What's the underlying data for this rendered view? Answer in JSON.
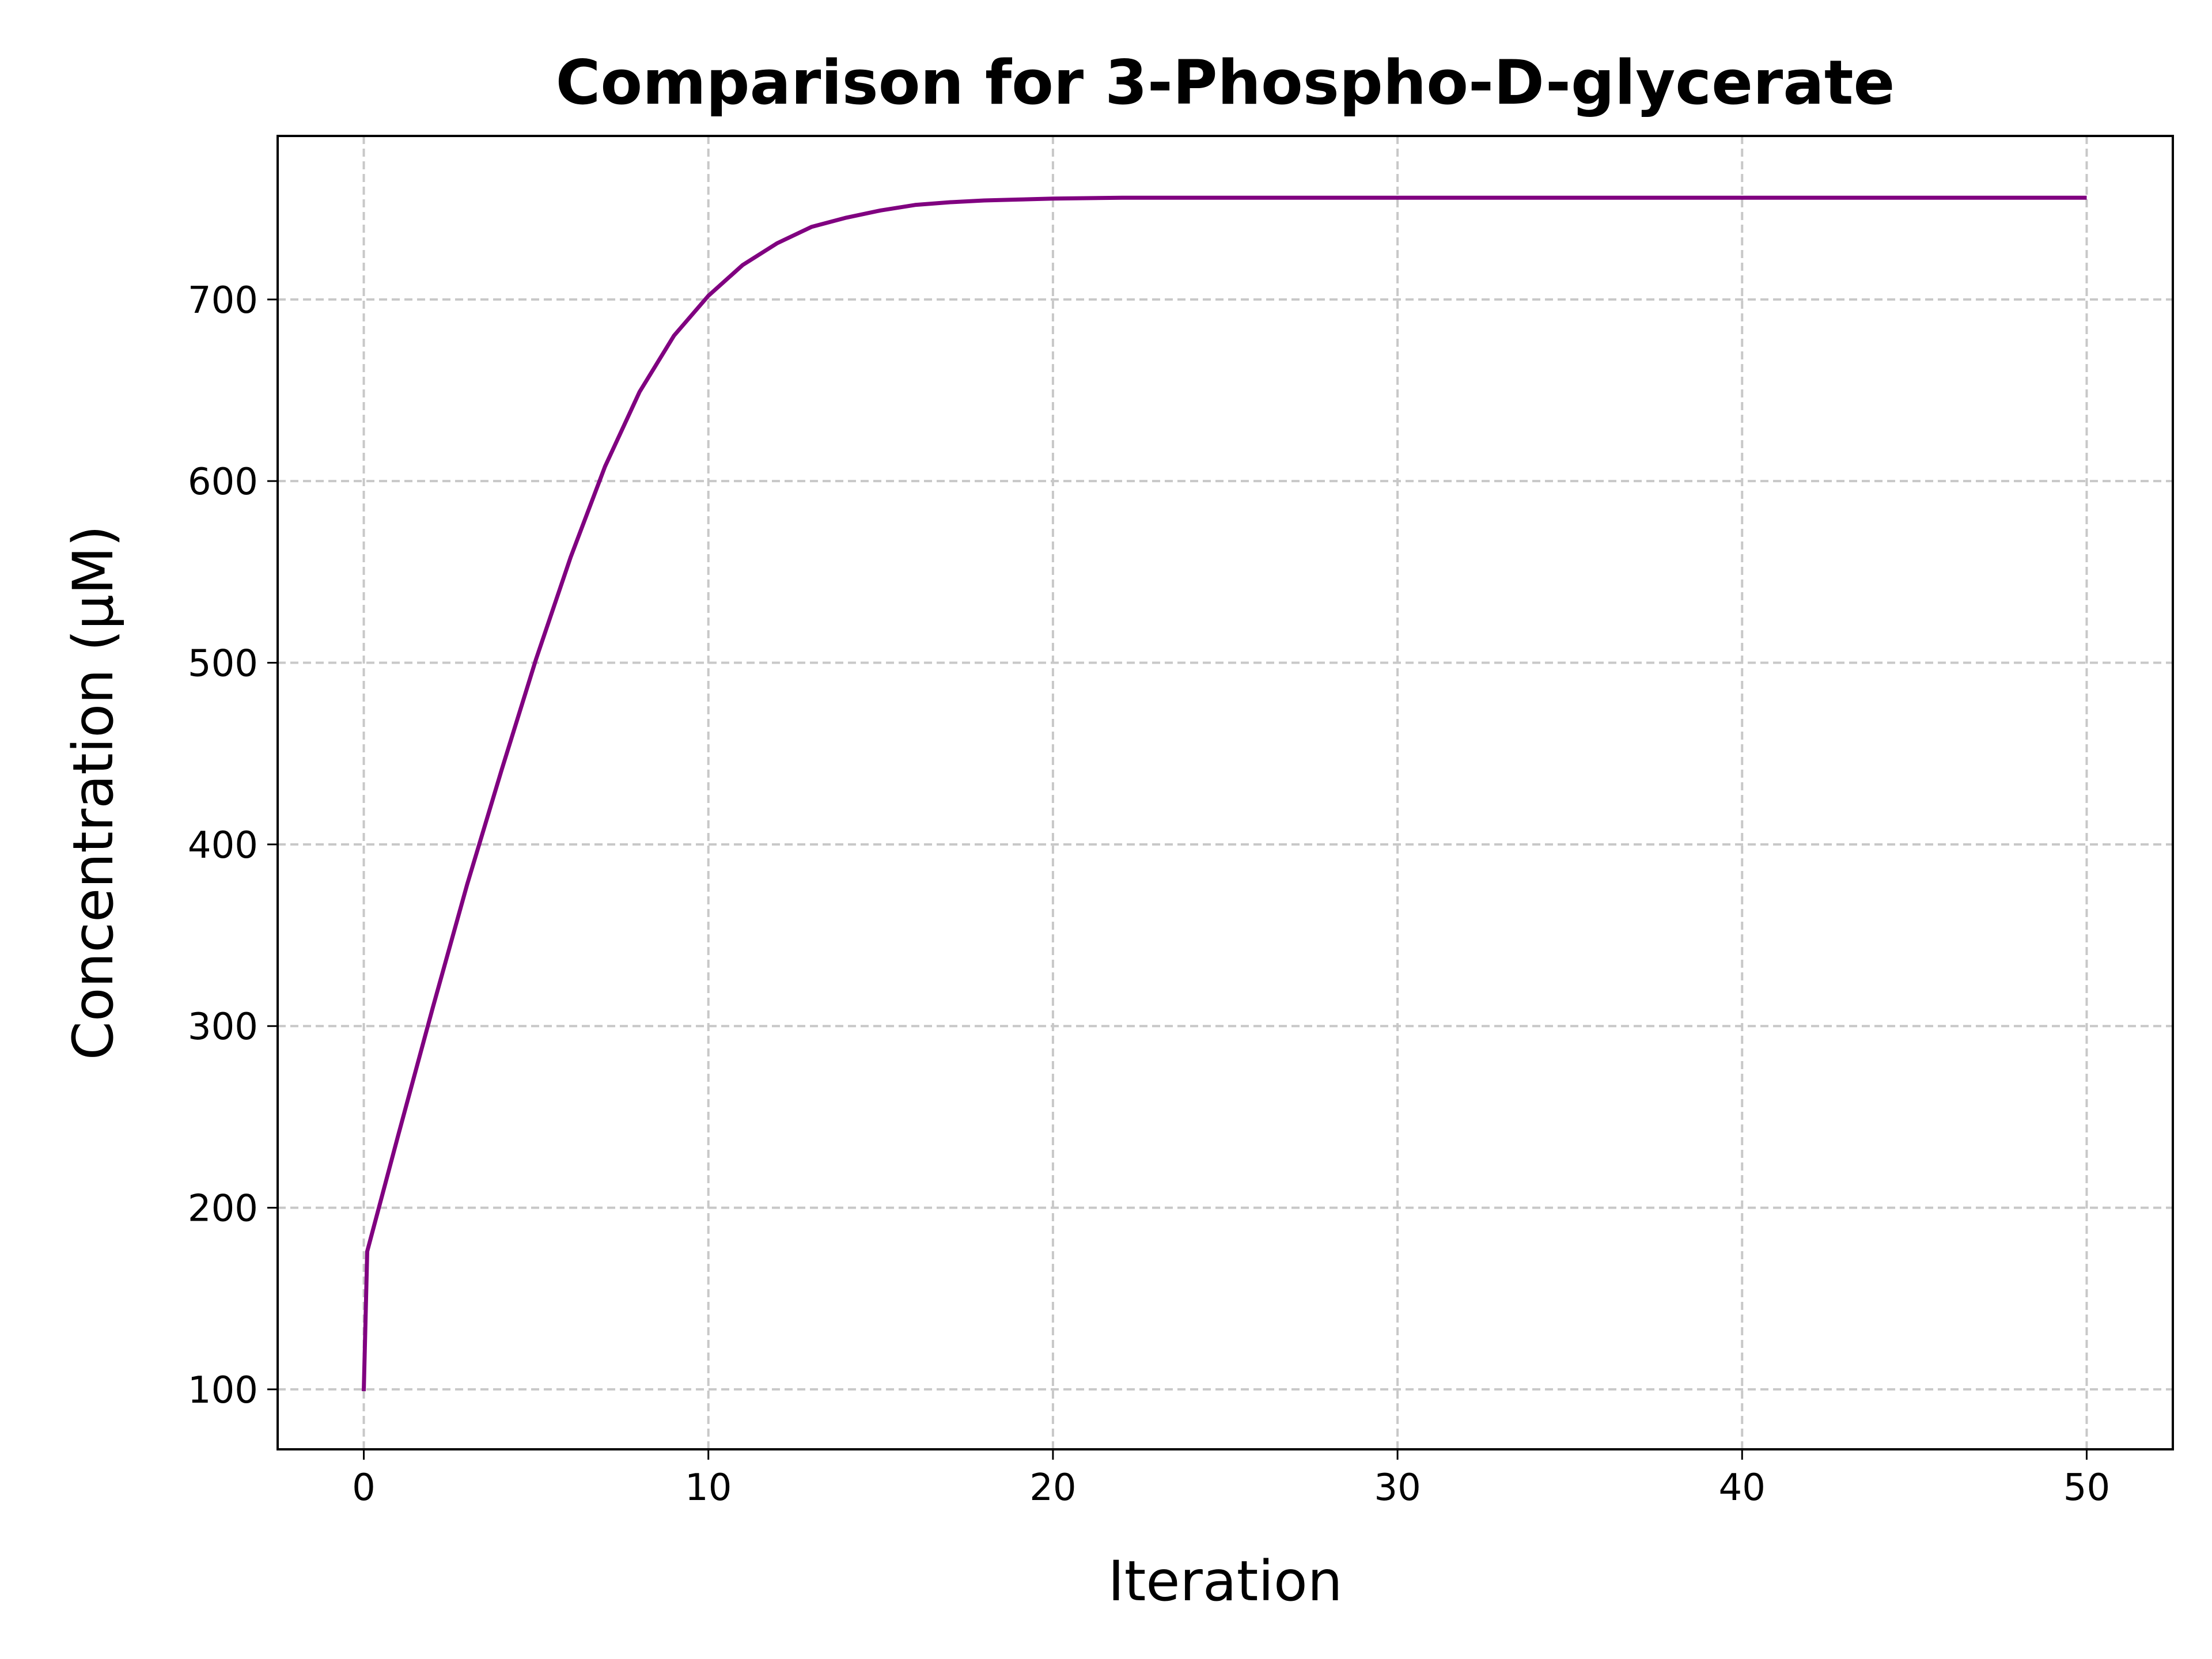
{
  "chart_data": {
    "type": "line",
    "title": "Comparison for 3-Phospho-D-glycerate",
    "xlabel": "Iteration",
    "ylabel": "Concentration (μM)",
    "xlim": [
      -2.5,
      52.5
    ],
    "ylim": [
      67,
      790
    ],
    "x_ticks": [
      0,
      10,
      20,
      30,
      40,
      50
    ],
    "y_ticks": [
      100,
      200,
      300,
      400,
      500,
      600,
      700
    ],
    "grid": true,
    "legend": "none",
    "series": [
      {
        "color": "#800080",
        "x": [
          0,
          0.1,
          1,
          2,
          3,
          4,
          5,
          6,
          7,
          8,
          9,
          10,
          11,
          12,
          13,
          14,
          15,
          16,
          17,
          18,
          19,
          20,
          22,
          24,
          26,
          30,
          35,
          40,
          45,
          50
        ],
        "y": [
          99,
          176,
          240,
          310,
          378,
          441,
          502,
          558,
          608,
          649,
          680,
          702,
          719,
          731,
          740,
          745,
          749,
          752,
          753.5,
          754.5,
          755,
          755.5,
          756,
          756,
          756,
          756,
          756,
          756,
          756,
          756
        ]
      }
    ]
  }
}
